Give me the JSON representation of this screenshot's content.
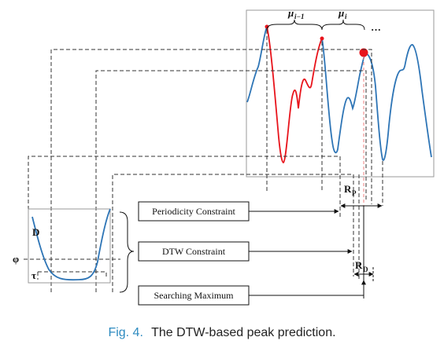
{
  "figure": {
    "constraint_boxes": {
      "periodicity": "Periodicity Constraint",
      "dtw": "DTW Constraint",
      "searching": "Searching Maximum"
    },
    "top_labels": {
      "mu_prev": "μ",
      "mu_prev_sub": "i−1",
      "mu_cur": "μ",
      "mu_cur_sub": "i",
      "ellipsis": "···"
    },
    "range_labels": {
      "rp": "R",
      "rp_sub": "P",
      "rd": "R",
      "rd_sub": "D"
    },
    "dtw_plot": {
      "d_label": "D",
      "phi_label": "φ",
      "tau_label": "τ"
    },
    "caption": {
      "prefix": "Fig. 4.",
      "text": "The DTW-based peak prediction."
    },
    "colors": {
      "signal": "#2e75b6",
      "highlight": "#e8141c",
      "caption_prefix": "#2e8bc0",
      "prediction_line": "#f08080"
    }
  }
}
